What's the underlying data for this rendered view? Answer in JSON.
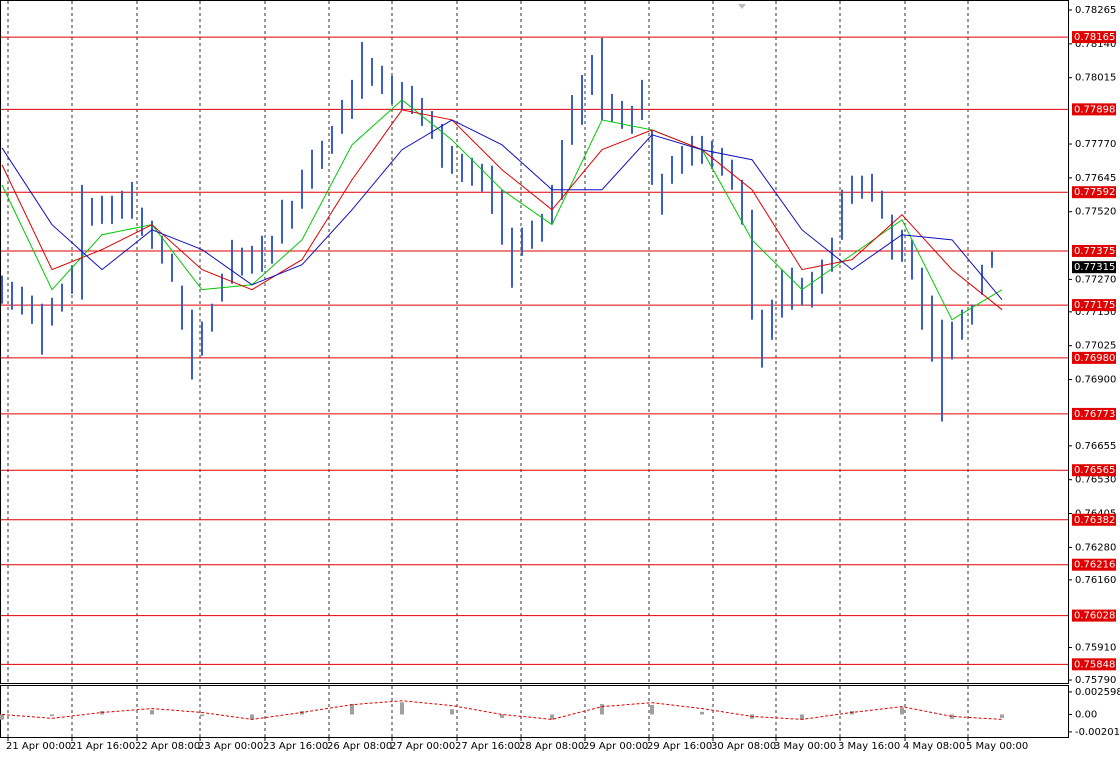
{
  "chart_data": {
    "type": "ohlc",
    "xlim": [
      -0.2,
      106.6
    ],
    "ylim": [
      0.75779,
      0.78302
    ],
    "yticks": [
      0.78265,
      {
        "value": 0.7814,
        "label": "0.78140"
      },
      0.78015,
      {
        "value": 0.7777,
        "label": "0.77770"
      },
      0.77645,
      {
        "value": 0.7752,
        "label": "0.77520"
      },
      {
        "value": 0.7727,
        "label": "0.77270"
      },
      {
        "value": 0.7715,
        "label": "0.77150"
      },
      0.77025,
      {
        "value": 0.769,
        "label": "0.76900"
      },
      0.76655,
      {
        "value": 0.7653,
        "label": "0.76530"
      },
      0.76405,
      {
        "value": 0.7628,
        "label": "0.76280"
      },
      {
        "value": 0.7616,
        "label": "0.76160"
      },
      {
        "value": 0.7591,
        "label": "0.75910"
      },
      {
        "value": 0.7579,
        "label": "0.75790"
      }
    ],
    "xticks": [
      {
        "value": 0.6,
        "label": "21 Apr 00:00"
      },
      {
        "value": 7,
        "label": "21 Apr 16:00"
      },
      {
        "value": 13.5,
        "label": "22 Apr 08:00"
      },
      {
        "value": 19.8,
        "label": "23 Apr 00:00"
      },
      {
        "value": 26.3,
        "label": "23 Apr 16:00"
      },
      {
        "value": 32.7,
        "label": "26 Apr 08:00"
      },
      {
        "value": 39,
        "label": "27 Apr 00:00"
      },
      {
        "value": 45.5,
        "label": "27 Apr 16:00"
      },
      {
        "value": 51.9,
        "label": "28 Apr 08:00"
      },
      {
        "value": 58.3,
        "label": "29 Apr 00:00"
      },
      {
        "value": 64.7,
        "label": "29 Apr 16:00"
      },
      {
        "value": 71.1,
        "label": "30 Apr 08:00"
      },
      {
        "value": 77.4,
        "label": "3 May 00:00"
      },
      {
        "value": 83.8,
        "label": "3 May 16:00"
      },
      {
        "value": 90.3,
        "label": "4 May 08:00"
      },
      {
        "value": 96.6,
        "label": "5 May 00:00"
      }
    ],
    "grid": true,
    "bar_color": "#3a5fcd",
    "high": [
      0.77284,
      0.77261,
      0.77243,
      0.7721,
      0.7718,
      0.77202,
      0.77254,
      0.77321,
      0.77619,
      0.77571,
      0.77579,
      0.77579,
      0.77597,
      0.7763,
      0.77535,
      0.77487,
      0.77431,
      0.77365,
      0.77247,
      0.77158,
      0.77114,
      0.7718,
      0.77291,
      0.77416,
      0.77387,
      0.77394,
      0.77431,
      0.77431,
      0.77564,
      0.7756,
      0.77675,
      0.77749,
      0.77782,
      0.77837,
      0.77933,
      0.78007,
      0.78147,
      0.78088,
      0.78059,
      0.78022,
      0.77999,
      0.77985,
      0.7794,
      0.77892,
      0.77844,
      0.77763,
      0.77734,
      0.77719,
      0.77697,
      0.7769,
      0.77601,
      0.77461,
      0.77461,
      0.77487,
      0.77512,
      0.77619,
      0.77785,
      0.77951,
      0.78025,
      0.78099,
      0.78162,
      0.77955,
      0.77929,
      0.77911,
      0.78007,
      0.77822,
      0.7766,
      0.77726,
      0.77763,
      0.778,
      0.778,
      0.77782,
      0.77756,
      0.77712,
      0.77638,
      0.77527,
      0.77158,
      0.77195,
      0.77306,
      0.77313,
      0.77276,
      0.77298,
      0.77343,
      0.77424,
      0.77601,
      0.77653,
      0.77653,
      0.7766,
      0.77597,
      0.77509,
      0.77453,
      0.77416,
      0.77313,
      0.7721,
      0.77121,
      0.77114,
      0.77158,
      0.77177,
      0.77324,
      0.77372
    ],
    "low": [
      0.7718,
      0.77158,
      0.7714,
      0.77106,
      0.76992,
      0.77099,
      0.77151,
      0.77217,
      0.77195,
      0.77468,
      0.77475,
      0.77475,
      0.77494,
      0.77494,
      0.77431,
      0.77383,
      0.77328,
      0.77261,
      0.77084,
      0.769,
      0.76988,
      0.77077,
      0.77188,
      0.77254,
      0.77284,
      0.77291,
      0.77298,
      0.77328,
      0.77402,
      0.77457,
      0.77531,
      0.77605,
      0.77678,
      0.77734,
      0.77808,
      0.77863,
      0.77937,
      0.77985,
      0.77955,
      0.77918,
      0.77896,
      0.77881,
      0.77837,
      0.77789,
      0.77682,
      0.7766,
      0.7763,
      0.77616,
      0.77594,
      0.77512,
      0.77398,
      0.77239,
      0.77357,
      0.77383,
      0.77409,
      0.77475,
      0.77564,
      0.77767,
      0.77841,
      0.77951,
      0.77859,
      0.77852,
      0.77826,
      0.77808,
      0.77859,
      0.77619,
      0.77509,
      0.77623,
      0.7766,
      0.7769,
      0.77697,
      0.77678,
      0.77653,
      0.77601,
      0.77472,
      0.77121,
      0.76944,
      0.77047,
      0.77129,
      0.77158,
      0.77173,
      0.77166,
      0.77217,
      0.77298,
      0.77416,
      0.77549,
      0.77568,
      0.77557,
      0.77494,
      0.77343,
      0.77335,
      0.77269,
      0.77084,
      0.76966,
      0.76745,
      0.76974,
      0.77047,
      0.77103,
      0.77213,
      0.77313
    ],
    "line_x": [
      0,
      5,
      10,
      15,
      20,
      25,
      30,
      35,
      40,
      45,
      50,
      55,
      60,
      65,
      70,
      75,
      80,
      85,
      90,
      95,
      100
    ],
    "lines": [
      {
        "color": "#00c800",
        "values": [
          0.77619,
          0.77232,
          0.77435,
          0.77472,
          0.77232,
          0.7725,
          0.77416,
          0.77767,
          0.77933,
          0.77785,
          0.77601,
          0.77472,
          0.77859,
          0.77822,
          0.77749,
          0.77416,
          0.77232,
          0.77361,
          0.7749,
          0.77121,
          0.77232
        ]
      },
      {
        "color": "#e00000",
        "values": [
          0.77693,
          0.77306,
          0.7738,
          0.77472,
          0.77306,
          0.77232,
          0.77343,
          0.77638,
          0.77896,
          0.77859,
          0.77675,
          0.77527,
          0.77749,
          0.77822,
          0.77749,
          0.77601,
          0.77306,
          0.77343,
          0.77509,
          0.77306,
          0.77158
        ]
      },
      {
        "color": "#1010c0",
        "values": [
          0.77756,
          0.77472,
          0.77306,
          0.77453,
          0.7738,
          0.7725,
          0.77324,
          0.77527,
          0.77749,
          0.77859,
          0.77767,
          0.77601,
          0.77601,
          0.77804,
          0.77749,
          0.77712,
          0.77453,
          0.77306,
          0.77435,
          0.77416,
          0.77195
        ]
      }
    ],
    "level_color": "#e00000",
    "levels": [
      0.78165,
      0.77898,
      0.77592,
      0.77375,
      0.77175,
      {
        "value": 0.7698,
        "label": "0.76980"
      },
      0.76773,
      0.76565,
      0.76382,
      0.76216,
      0.76028,
      0.75848
    ],
    "current_price": 0.77315,
    "oscillator": {
      "ylim": [
        -0.0026,
        0.00328
      ],
      "yticks": [
        0.002598,
        {
          "value": 0,
          "label": "0.00"
        },
        -0.002011
      ],
      "histogram_color": "#a0a0a0",
      "signal_color": "#e00000",
      "histogram": [
        -0.0006,
        -0.0002,
        0.0004,
        0.0005,
        -0.0002,
        -0.0006,
        0.0004,
        0.0012,
        0.0014,
        0.0006,
        -0.0004,
        -0.0006,
        0.0012,
        0.0011,
        0.0003,
        -0.0005,
        -0.0006,
        0.0004,
        0.0008,
        -0.0005,
        -0.0004
      ],
      "signal": [
        0,
        -0.00045,
        0.00023,
        0.00068,
        0.00023,
        -0.00057,
        0.00023,
        0.00113,
        0.00158,
        0.00102,
        0,
        -0.00057,
        0.0009,
        0.00136,
        0.00068,
        -0.00023,
        -0.00057,
        0.00023,
        0.0009,
        -0.00023,
        -0.00057
      ]
    }
  }
}
